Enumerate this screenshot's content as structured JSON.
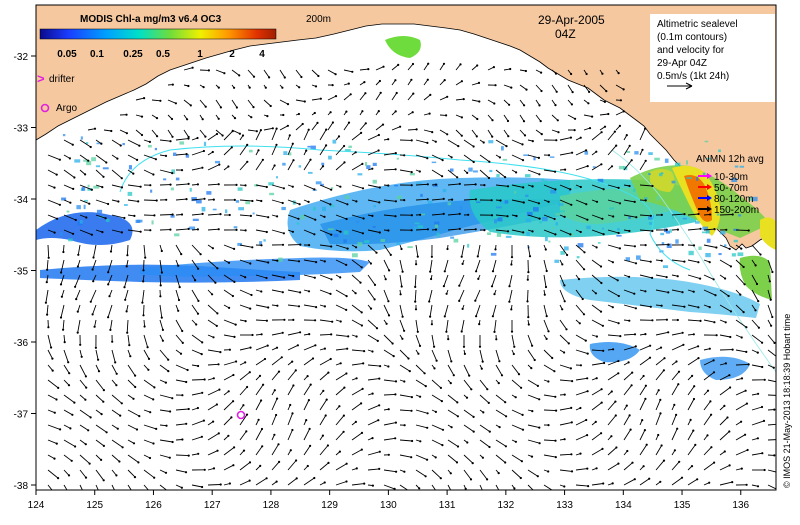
{
  "map": {
    "colorbar_title": "MODIS Chl-a mg/m3 v6.4 OC3",
    "colorbar_ticks": [
      "0.05",
      "0.1",
      "0.25",
      "0.5",
      "1",
      "2",
      "4"
    ],
    "colorbar_colors": [
      "#0a0a8c",
      "#1a3cff",
      "#00a0ff",
      "#00e0c8",
      "#6edc3c",
      "#f0f000",
      "#ff9600",
      "#e03200",
      "#a01e00"
    ],
    "isobath_label": "200m",
    "date": "29-Apr-2005",
    "time": "04Z",
    "legend_drifter": "drifter",
    "legend_argo": "Argo",
    "altimetry_note": [
      "Altimetric sealevel",
      "(0.1m contours)",
      "and velocity for",
      "29-Apr 04Z",
      "0.5m/s (1kt 24h)"
    ],
    "anmn_title": "ANMN 12h avg",
    "anmn_depths": [
      {
        "label": "10-30m",
        "color": "#ff00ff"
      },
      {
        "label": "50-70m",
        "color": "#ff0000"
      },
      {
        "label": "80-120m",
        "color": "#0000ff"
      },
      {
        "label": "150-200m",
        "color": "#000000"
      }
    ],
    "credit": "© IMOS 21-May-2013 18:18:39 Hobart time",
    "x_ticks": [
      "124",
      "125",
      "126",
      "127",
      "128",
      "129",
      "130",
      "131",
      "132",
      "133",
      "134",
      "135",
      "136"
    ],
    "y_ticks": [
      "-32",
      "-33",
      "-34",
      "-35",
      "-36",
      "-37",
      "-38"
    ],
    "colors": {
      "land": "#f5c8a0",
      "contour": "#40e0f0",
      "arrow": "#000000",
      "argo": "#e020e0"
    }
  }
}
